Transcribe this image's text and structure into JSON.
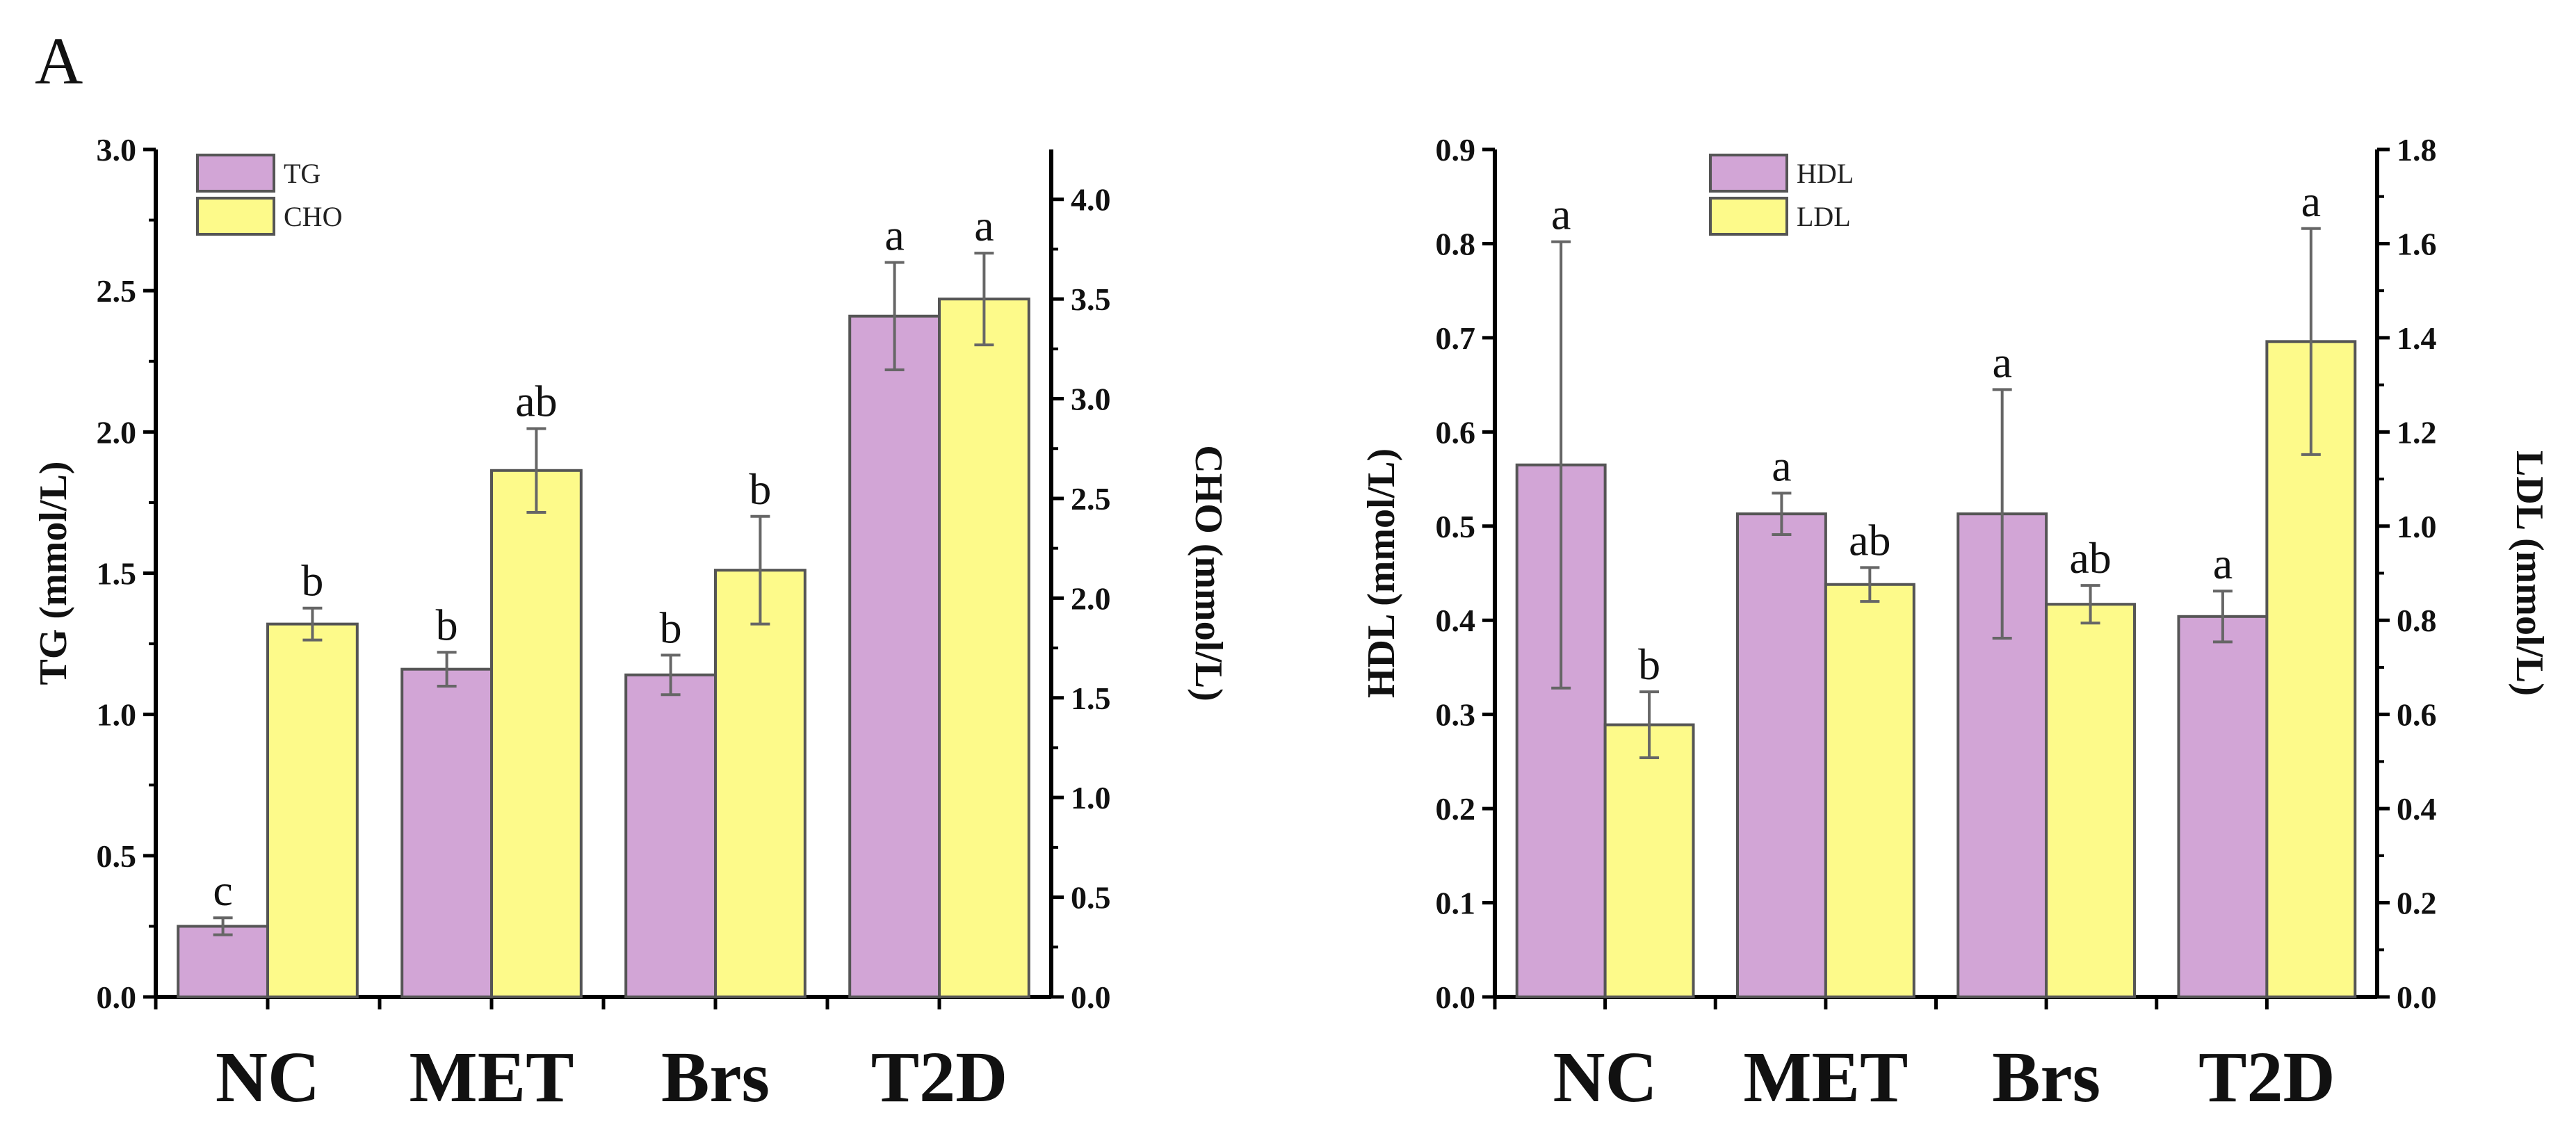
{
  "panel_label": "A",
  "colors": {
    "series1": "#d2a5d6",
    "series2": "#fdfa8a",
    "stroke": "#555555",
    "error": "#666666"
  },
  "chart_data": [
    {
      "type": "bar",
      "categories": [
        "NC",
        "MET",
        "Brs",
        "T2D"
      ],
      "ylabel": "TG (mmol/L)",
      "y2label": "CHO (mmol/L)",
      "ylim": [
        0,
        3.0
      ],
      "y2lim": [
        0,
        4.25
      ],
      "yticks": [
        "0.0",
        "0.5",
        "1.0",
        "1.5",
        "2.0",
        "2.5",
        "3.0"
      ],
      "y2ticks": [
        "0.0",
        "0.5",
        "1.0",
        "1.5",
        "2.0",
        "2.5",
        "3.0",
        "3.5",
        "4.0"
      ],
      "legend_position": "top-left",
      "series": [
        {
          "name": "TG",
          "axis": "left",
          "values": [
            0.25,
            1.16,
            1.14,
            2.41
          ],
          "errors": [
            0.03,
            0.06,
            0.07,
            0.19
          ],
          "labels": [
            "c",
            "b",
            "b",
            "a"
          ]
        },
        {
          "name": "CHO",
          "axis": "right",
          "values": [
            1.87,
            2.64,
            2.14,
            3.5
          ],
          "errors": [
            0.08,
            0.21,
            0.27,
            0.23
          ],
          "labels": [
            "b",
            "ab",
            "b",
            "a"
          ]
        }
      ]
    },
    {
      "type": "bar",
      "categories": [
        "NC",
        "MET",
        "Brs",
        "T2D"
      ],
      "ylabel": "HDL (mmol/L)",
      "y2label": "LDL (mmol/L)",
      "ylim": [
        0,
        0.9
      ],
      "y2lim": [
        0,
        1.8
      ],
      "yticks": [
        "0.0",
        "0.1",
        "0.2",
        "0.3",
        "0.4",
        "0.5",
        "0.6",
        "0.7",
        "0.8",
        "0.9"
      ],
      "y2ticks": [
        "0.0",
        "0.2",
        "0.4",
        "0.6",
        "0.8",
        "1.0",
        "1.2",
        "1.4",
        "1.6",
        "1.8"
      ],
      "legend_position": "top-left",
      "series": [
        {
          "name": "HDL",
          "axis": "left",
          "values": [
            0.565,
            0.513,
            0.513,
            0.404
          ],
          "errors": [
            0.237,
            0.022,
            0.132,
            0.027
          ],
          "labels": [
            "a",
            "a",
            "a",
            "a"
          ]
        },
        {
          "name": "LDL",
          "axis": "right",
          "values": [
            0.578,
            0.876,
            0.834,
            1.392
          ],
          "errors": [
            0.07,
            0.036,
            0.04,
            0.24
          ],
          "labels": [
            "b",
            "ab",
            "ab",
            "a"
          ]
        }
      ]
    }
  ]
}
